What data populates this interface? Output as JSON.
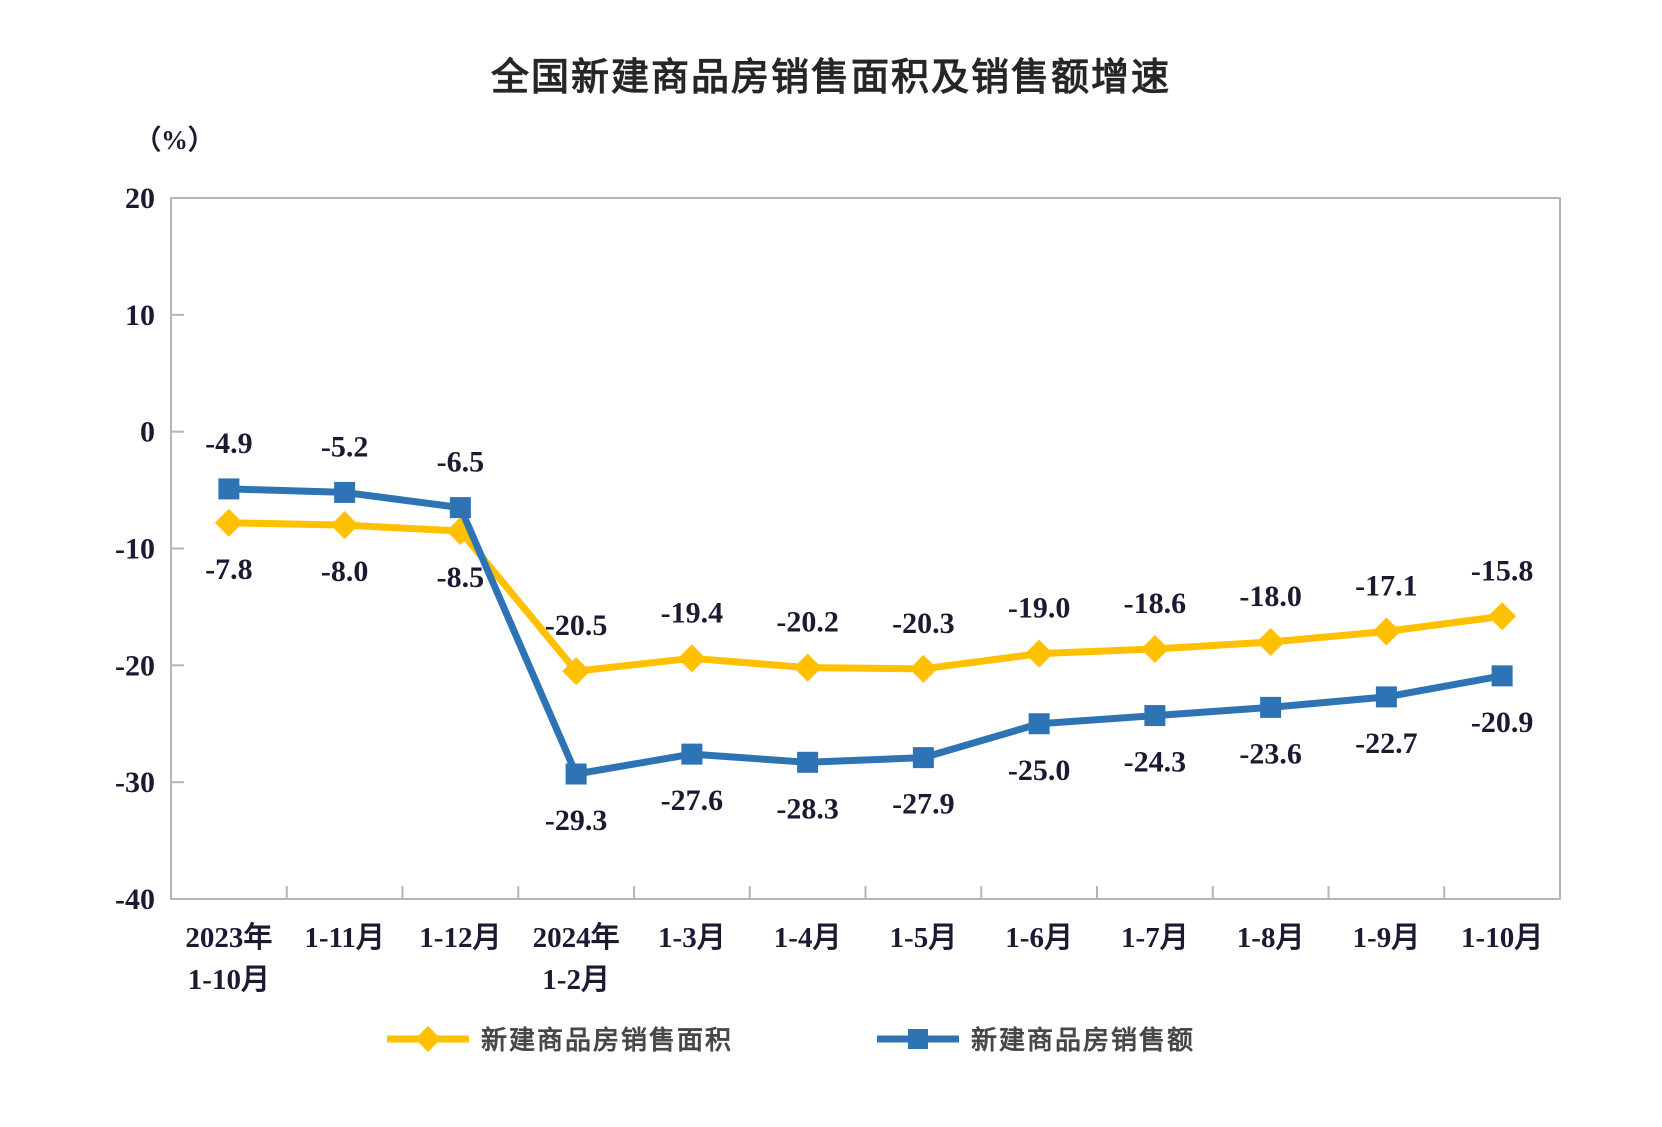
{
  "page": {
    "background": "#ffffff"
  },
  "chart_data": {
    "type": "line",
    "title": "全国新建商品房销售面积及销售额增速",
    "unit_label": "（%）",
    "categories": [
      [
        "2023年",
        "1-10月"
      ],
      [
        "1-11月"
      ],
      [
        "1-12月"
      ],
      [
        "2024年",
        "1-2月"
      ],
      [
        "1-3月"
      ],
      [
        "1-4月"
      ],
      [
        "1-5月"
      ],
      [
        "1-6月"
      ],
      [
        "1-7月"
      ],
      [
        "1-8月"
      ],
      [
        "1-9月"
      ],
      [
        "1-10月"
      ]
    ],
    "ylim": [
      -40,
      20
    ],
    "y_ticks": [
      20,
      10,
      0,
      -10,
      -20,
      -30,
      -40
    ],
    "grid": false,
    "legend_position": "bottom",
    "axis_color": "#b5b5b5",
    "label_color": "#1a1a33",
    "series": [
      {
        "name": "新建商品房销售面积",
        "slug": "sales-area",
        "color": "#FFC000",
        "marker": "diamond",
        "values": [
          -7.8,
          -8.0,
          -8.5,
          -20.5,
          -19.4,
          -20.2,
          -20.3,
          -19.0,
          -18.6,
          -18.0,
          -17.1,
          -15.8
        ],
        "label_side": [
          "below",
          "below",
          "below",
          "above",
          "above",
          "above",
          "above",
          "above",
          "above",
          "above",
          "above",
          "above"
        ]
      },
      {
        "name": "新建商品房销售额",
        "slug": "sales-amount",
        "color": "#2E74B5",
        "marker": "square",
        "values": [
          -4.9,
          -5.2,
          -6.5,
          -29.3,
          -27.6,
          -28.3,
          -27.9,
          -25.0,
          -24.3,
          -23.6,
          -22.7,
          -20.9
        ],
        "label_side": [
          "above",
          "above",
          "above",
          "below",
          "below",
          "below",
          "below",
          "below",
          "below",
          "below",
          "below",
          "below"
        ]
      }
    ]
  }
}
